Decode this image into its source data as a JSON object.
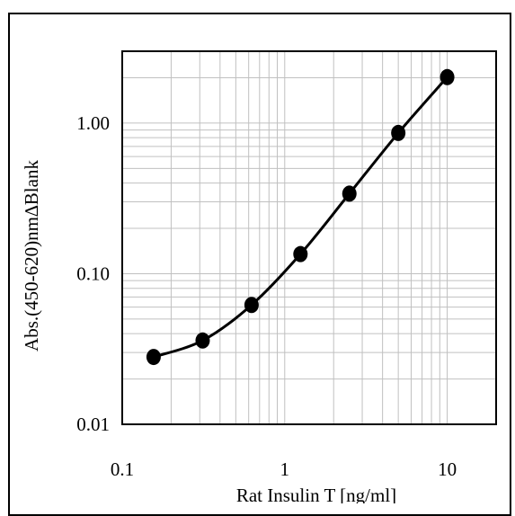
{
  "chart_data": {
    "type": "line",
    "xlabel": "Rat Insulin T [ng/ml]",
    "ylabel": "Abs.(450-620)nm∆Blank",
    "x_scale": "log",
    "y_scale": "log",
    "xlim": [
      0.1,
      20
    ],
    "ylim": [
      0.01,
      3
    ],
    "x_ticks": [
      0.1,
      1,
      10
    ],
    "x_tick_labels": [
      "0.1",
      "1",
      "10"
    ],
    "y_ticks": [
      0.01,
      0.1,
      1.0
    ],
    "y_tick_labels": [
      "0.01",
      "0.10",
      "1.00"
    ],
    "grid": true,
    "series": [
      {
        "x": [
          0.156,
          0.3125,
          0.625,
          1.25,
          2.5,
          5,
          10
        ],
        "y": [
          0.028,
          0.036,
          0.062,
          0.135,
          0.34,
          0.86,
          2.02
        ]
      }
    ],
    "colors": {
      "line": "#000000",
      "grid": "#c0c0c0",
      "marker": "#000000"
    }
  }
}
